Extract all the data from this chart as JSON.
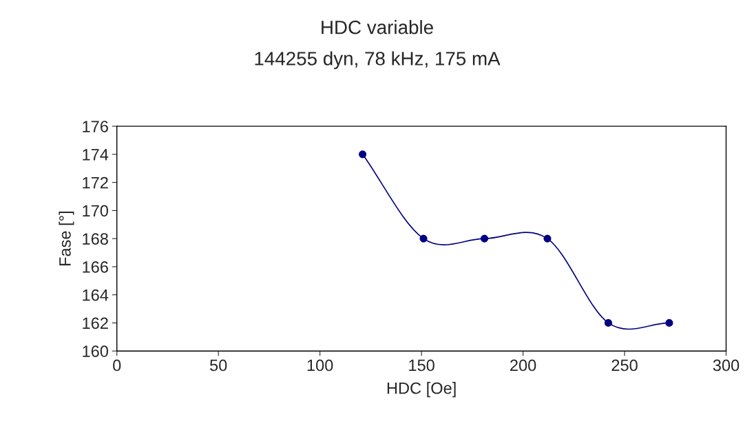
{
  "chart_data": {
    "type": "line",
    "title": "HDC variable",
    "subtitle": "144255 dyn, 78 kHz, 175 mA",
    "xlabel": "HDC [Oe]",
    "ylabel": "Fase [°]",
    "x": [
      121,
      151,
      181,
      212,
      242,
      272
    ],
    "series": [
      {
        "color": "#000080",
        "values": [
          174,
          168,
          168,
          168,
          162,
          162
        ]
      }
    ],
    "xlim": [
      0,
      300
    ],
    "xticks": [
      0,
      50,
      100,
      150,
      200,
      250,
      300
    ],
    "ylim": [
      160,
      176
    ],
    "yticks": [
      160,
      162,
      164,
      166,
      168,
      170,
      172,
      174,
      176
    ],
    "grid": false,
    "legend": false,
    "marker": "circle",
    "line_style": "solid"
  }
}
